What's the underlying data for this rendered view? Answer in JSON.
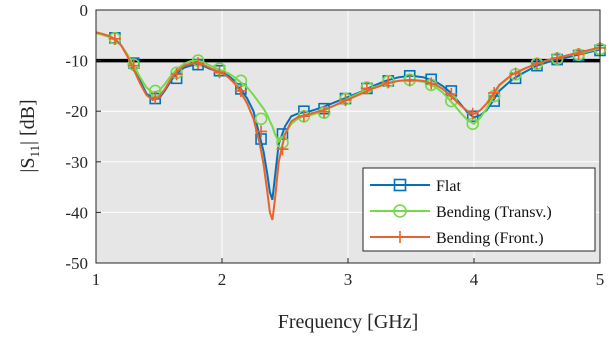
{
  "chart_data": {
    "type": "line",
    "xlabel": "Frequency [GHz]",
    "ylabel_main": "|S",
    "ylabel_sub": "11",
    "ylabel_tail": "| [dB]",
    "xlim": [
      1,
      5
    ],
    "ylim": [
      -50,
      0
    ],
    "xticks": [
      1,
      2,
      3,
      4,
      5
    ],
    "yticks": [
      0,
      -10,
      -20,
      -30,
      -40,
      -50
    ],
    "xtick_labels": [
      "1",
      "2",
      "3",
      "4",
      "5"
    ],
    "ytick_labels": [
      "0",
      "-10",
      "-20",
      "-30",
      "-40",
      "-50"
    ],
    "grid": true,
    "background": "#e6e6e6",
    "reference_line": {
      "y": -10,
      "color": "#000000"
    },
    "legend": {
      "placement": "bottom-right",
      "entries": [
        "Flat",
        "Bending (Transv.)",
        "Bending (Front.)"
      ]
    },
    "series": [
      {
        "name": "Flat",
        "color": "#0072bd",
        "marker": "square",
        "x": [
          1.0,
          1.05,
          1.1,
          1.15,
          1.2,
          1.25,
          1.3,
          1.35,
          1.4,
          1.45,
          1.5,
          1.55,
          1.6,
          1.65,
          1.7,
          1.75,
          1.8,
          1.85,
          1.9,
          1.95,
          2.0,
          2.05,
          2.1,
          2.15,
          2.2,
          2.25,
          2.3,
          2.33,
          2.36,
          2.38,
          2.4,
          2.42,
          2.45,
          2.5,
          2.55,
          2.6,
          2.65,
          2.7,
          2.8,
          2.9,
          3.0,
          3.1,
          3.2,
          3.3,
          3.4,
          3.5,
          3.6,
          3.7,
          3.75,
          3.8,
          3.85,
          3.9,
          3.95,
          4.0,
          4.05,
          4.1,
          4.15,
          4.2,
          4.3,
          4.4,
          4.5,
          4.6,
          4.7,
          4.8,
          4.9,
          5.0
        ],
        "y": [
          -4.5,
          -4.8,
          -5.2,
          -5.8,
          -7.0,
          -9.0,
          -11.5,
          -14.0,
          -16.5,
          -17.6,
          -17.5,
          -15.8,
          -13.8,
          -12.3,
          -11.4,
          -11.0,
          -10.8,
          -11.0,
          -11.6,
          -12.0,
          -12.4,
          -13.0,
          -14.0,
          -15.6,
          -17.5,
          -20.0,
          -25.0,
          -28.0,
          -32.5,
          -36.0,
          -37.5,
          -33.0,
          -26.5,
          -23.0,
          -21.0,
          -20.5,
          -20.2,
          -20.0,
          -19.2,
          -18.2,
          -17.2,
          -16.2,
          -15.0,
          -14.0,
          -13.3,
          -13.0,
          -13.3,
          -14.2,
          -15.0,
          -16.0,
          -17.3,
          -18.8,
          -20.3,
          -21.2,
          -20.8,
          -19.8,
          -18.0,
          -16.0,
          -13.8,
          -12.3,
          -11.0,
          -10.2,
          -9.6,
          -9.0,
          -8.4,
          -7.8
        ],
        "marker_x": [
          1.15,
          1.3,
          1.47,
          1.64,
          1.81,
          1.98,
          2.15,
          2.31,
          2.48,
          2.65,
          2.81,
          2.98,
          3.15,
          3.32,
          3.49,
          3.66,
          3.82,
          3.99,
          4.16,
          4.33,
          4.5,
          4.66,
          4.83,
          5.0
        ],
        "marker_y": [
          -5.5,
          -10.5,
          -17.5,
          -13.5,
          -10.8,
          -12.0,
          -15.6,
          -25.5,
          -24.5,
          -20.0,
          -19.5,
          -17.5,
          -15.5,
          -14.0,
          -13.0,
          -13.7,
          -16.0,
          -21.0,
          -18.0,
          -13.5,
          -11.0,
          -9.8,
          -9.0,
          -8.0
        ]
      },
      {
        "name": "Bending (Transv.)",
        "color": "#77d94a",
        "marker": "circle",
        "x": [
          1.0,
          1.05,
          1.1,
          1.15,
          1.2,
          1.25,
          1.3,
          1.35,
          1.4,
          1.45,
          1.5,
          1.55,
          1.6,
          1.65,
          1.7,
          1.75,
          1.8,
          1.85,
          1.9,
          1.95,
          2.0,
          2.05,
          2.1,
          2.15,
          2.2,
          2.25,
          2.3,
          2.33,
          2.36,
          2.38,
          2.4,
          2.42,
          2.45,
          2.5,
          2.55,
          2.6,
          2.65,
          2.7,
          2.8,
          2.9,
          3.0,
          3.1,
          3.2,
          3.3,
          3.4,
          3.5,
          3.6,
          3.7,
          3.75,
          3.8,
          3.85,
          3.9,
          3.95,
          4.0,
          4.05,
          4.1,
          4.15,
          4.2,
          4.3,
          4.4,
          4.5,
          4.6,
          4.7,
          4.8,
          4.9,
          5.0
        ],
        "y": [
          -4.6,
          -4.9,
          -5.3,
          -5.9,
          -7.0,
          -8.8,
          -11.0,
          -13.3,
          -15.3,
          -16.3,
          -16.0,
          -14.5,
          -12.8,
          -11.5,
          -10.6,
          -10.1,
          -10.0,
          -10.3,
          -10.9,
          -11.5,
          -12.0,
          -12.5,
          -13.3,
          -14.3,
          -15.3,
          -16.8,
          -18.5,
          -19.5,
          -20.8,
          -22.0,
          -23.0,
          -24.5,
          -26.0,
          -24.5,
          -22.5,
          -21.5,
          -21.0,
          -20.8,
          -20.0,
          -18.8,
          -17.5,
          -16.3,
          -15.3,
          -14.5,
          -14.0,
          -13.8,
          -14.2,
          -15.3,
          -16.3,
          -17.6,
          -19.0,
          -20.5,
          -21.8,
          -22.5,
          -21.3,
          -19.5,
          -17.3,
          -15.0,
          -12.8,
          -11.6,
          -10.6,
          -9.8,
          -9.2,
          -8.7,
          -8.2,
          -7.6
        ],
        "marker_x": [
          1.15,
          1.3,
          1.47,
          1.64,
          1.81,
          1.98,
          2.15,
          2.31,
          2.48,
          2.65,
          2.81,
          2.98,
          3.15,
          3.32,
          3.49,
          3.66,
          3.82,
          3.99,
          4.16,
          4.33,
          4.5,
          4.66,
          4.83,
          5.0
        ],
        "marker_y": [
          -5.6,
          -10.8,
          -16.0,
          -12.4,
          -10.0,
          -11.6,
          -14.0,
          -21.5,
          -26.2,
          -21.0,
          -20.3,
          -17.6,
          -15.3,
          -14.1,
          -13.8,
          -14.8,
          -18.0,
          -22.5,
          -17.0,
          -12.7,
          -10.6,
          -9.6,
          -8.8,
          -7.7
        ]
      },
      {
        "name": "Bending (Front.)",
        "color": "#e8632b",
        "marker": "plus",
        "x": [
          1.0,
          1.05,
          1.1,
          1.15,
          1.2,
          1.25,
          1.3,
          1.35,
          1.4,
          1.45,
          1.5,
          1.55,
          1.6,
          1.65,
          1.7,
          1.75,
          1.8,
          1.85,
          1.9,
          1.95,
          2.0,
          2.05,
          2.1,
          2.15,
          2.2,
          2.25,
          2.3,
          2.33,
          2.36,
          2.38,
          2.4,
          2.42,
          2.45,
          2.5,
          2.55,
          2.6,
          2.65,
          2.7,
          2.8,
          2.9,
          3.0,
          3.1,
          3.2,
          3.3,
          3.4,
          3.5,
          3.6,
          3.7,
          3.75,
          3.8,
          3.85,
          3.9,
          3.95,
          4.0,
          4.05,
          4.1,
          4.15,
          4.2,
          4.3,
          4.4,
          4.5,
          4.6,
          4.7,
          4.8,
          4.9,
          5.0
        ],
        "y": [
          -4.4,
          -4.7,
          -5.1,
          -5.7,
          -7.0,
          -9.2,
          -11.8,
          -14.5,
          -16.8,
          -17.8,
          -17.2,
          -15.5,
          -13.4,
          -12.0,
          -11.0,
          -10.6,
          -10.5,
          -10.8,
          -11.4,
          -12.0,
          -12.5,
          -13.3,
          -14.5,
          -16.3,
          -18.5,
          -21.5,
          -26.5,
          -30.5,
          -36.0,
          -40.0,
          -41.5,
          -37.5,
          -30.0,
          -24.5,
          -22.0,
          -21.2,
          -20.8,
          -20.5,
          -19.8,
          -18.8,
          -17.7,
          -16.6,
          -15.5,
          -14.6,
          -14.0,
          -13.8,
          -14.0,
          -14.8,
          -15.6,
          -16.6,
          -17.8,
          -19.0,
          -20.0,
          -20.5,
          -19.8,
          -18.5,
          -16.7,
          -14.8,
          -12.8,
          -11.6,
          -10.6,
          -9.8,
          -9.2,
          -8.6,
          -8.0,
          -7.4
        ],
        "marker_x": [
          1.15,
          1.3,
          1.47,
          1.64,
          1.81,
          1.98,
          2.15,
          2.31,
          2.48,
          2.65,
          2.81,
          2.98,
          3.15,
          3.32,
          3.49,
          3.66,
          3.82,
          3.99,
          4.16,
          4.33,
          4.5,
          4.66,
          4.83,
          5.0
        ],
        "marker_y": [
          -5.7,
          -11.0,
          -17.3,
          -12.7,
          -10.5,
          -12.3,
          -16.0,
          -24.0,
          -27.5,
          -21.0,
          -20.1,
          -17.8,
          -15.5,
          -14.3,
          -13.9,
          -14.5,
          -16.6,
          -20.5,
          -16.4,
          -12.6,
          -10.6,
          -9.5,
          -8.7,
          -7.5
        ]
      }
    ]
  }
}
